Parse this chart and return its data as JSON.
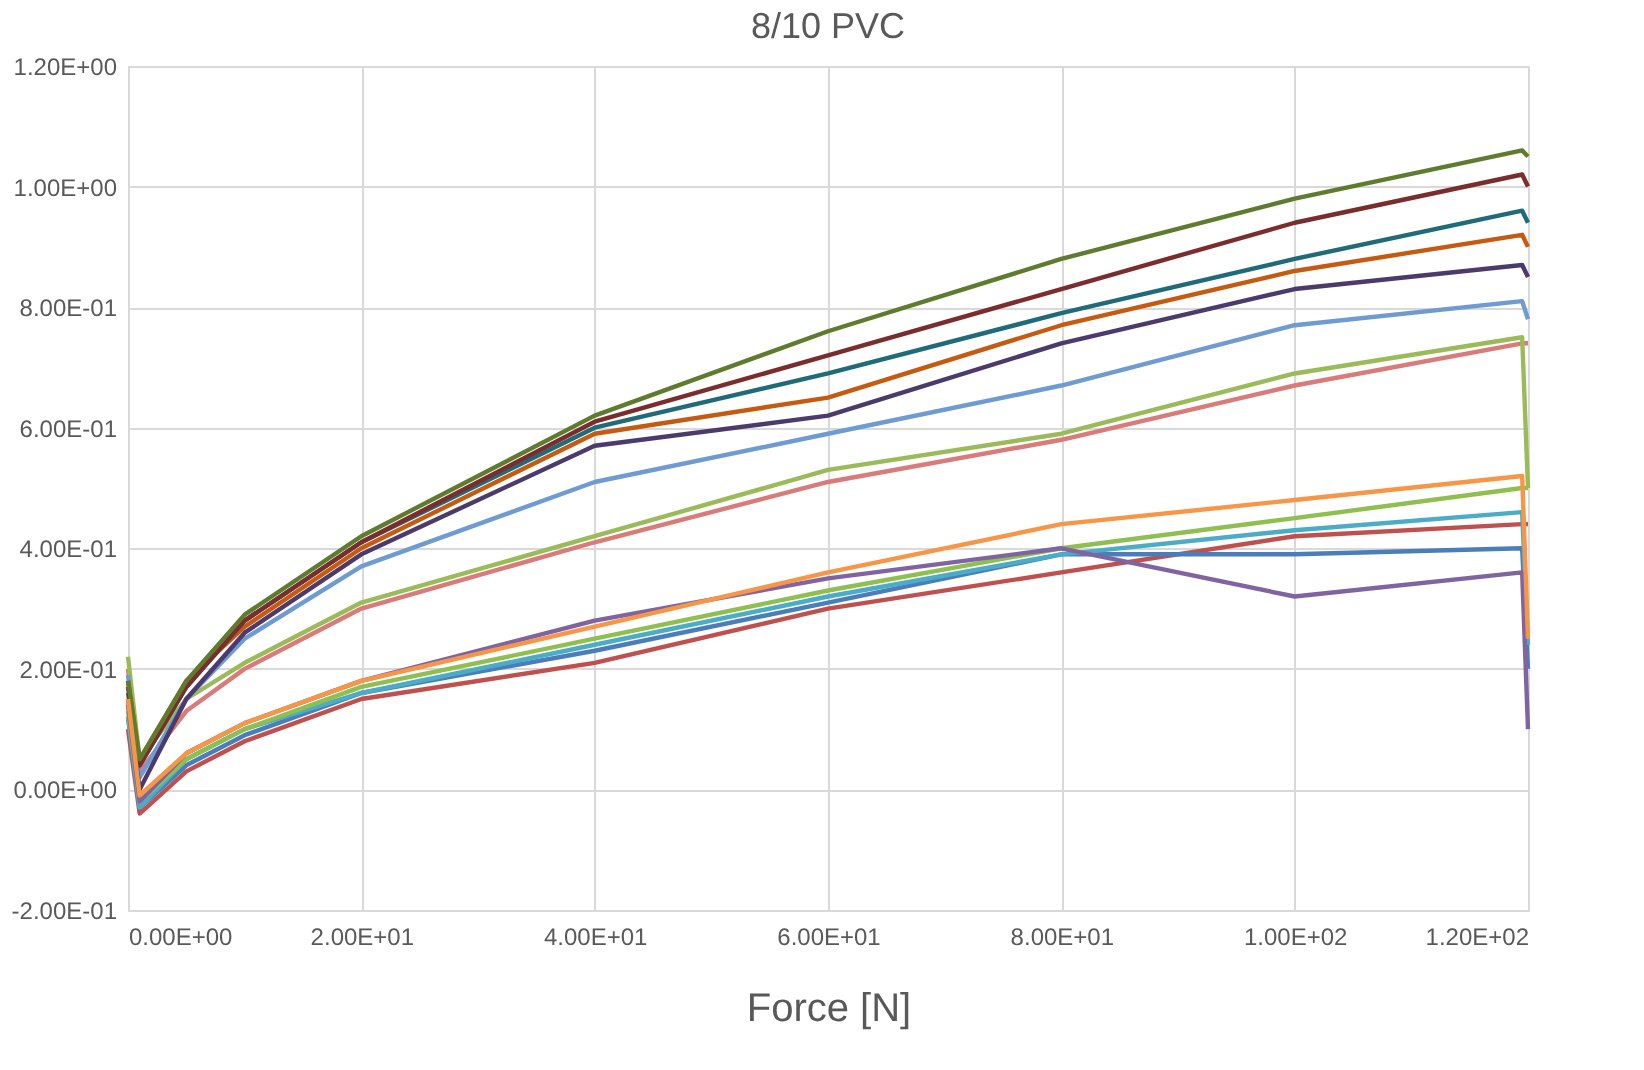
{
  "chart_data": {
    "type": "line",
    "title": "8/10 PVC",
    "xlabel": "Force [N]",
    "x": [
      0,
      1,
      5,
      10,
      20,
      40,
      60,
      80,
      100,
      119.5,
      120
    ],
    "xlim": [
      0,
      120
    ],
    "ylim": [
      -0.2,
      1.2
    ],
    "xticks": [
      {
        "value": 0,
        "label": "0.00E+00"
      },
      {
        "value": 20,
        "label": "2.00E+01"
      },
      {
        "value": 40,
        "label": "4.00E+01"
      },
      {
        "value": 60,
        "label": "6.00E+01"
      },
      {
        "value": 80,
        "label": "8.00E+01"
      },
      {
        "value": 100,
        "label": "1.00E+02"
      },
      {
        "value": 120,
        "label": "1.20E+02"
      }
    ],
    "yticks": [
      {
        "value": -0.2,
        "label": "-2.00E-01"
      },
      {
        "value": 0,
        "label": "0.00E+00"
      },
      {
        "value": 0.2,
        "label": "2.00E-01"
      },
      {
        "value": 0.4,
        "label": "4.00E-01"
      },
      {
        "value": 0.6,
        "label": "6.00E-01"
      },
      {
        "value": 0.8,
        "label": "8.00E-01"
      },
      {
        "value": 1.0,
        "label": "1.00E+00"
      },
      {
        "value": 1.2,
        "label": "1.20E+00"
      }
    ],
    "grid": true,
    "legend": false,
    "line_style": "solid",
    "marker": "none",
    "series": [
      {
        "color": "#d97b78",
        "values": [
          0.2,
          0.03,
          0.13,
          0.2,
          0.3,
          0.41,
          0.51,
          0.58,
          0.67,
          0.74,
          0.74
        ]
      },
      {
        "color": "#9bbb59",
        "values": [
          0.22,
          0.05,
          0.15,
          0.21,
          0.31,
          0.42,
          0.53,
          0.59,
          0.69,
          0.75,
          0.5
        ]
      },
      {
        "color": "#6e9bd1",
        "values": [
          0.19,
          0.02,
          0.15,
          0.25,
          0.37,
          0.51,
          0.59,
          0.67,
          0.77,
          0.81,
          0.78
        ]
      },
      {
        "color": "#4b3a6b",
        "values": [
          0.15,
          0.0,
          0.15,
          0.26,
          0.39,
          0.57,
          0.62,
          0.74,
          0.83,
          0.87,
          0.85
        ]
      },
      {
        "color": "#c55a11",
        "values": [
          0.18,
          0.05,
          0.18,
          0.27,
          0.4,
          0.59,
          0.65,
          0.77,
          0.86,
          0.92,
          0.9
        ]
      },
      {
        "color": "#1f6b7a",
        "values": [
          0.16,
          0.04,
          0.17,
          0.28,
          0.41,
          0.6,
          0.69,
          0.79,
          0.88,
          0.96,
          0.94
        ]
      },
      {
        "color": "#7b2c2c",
        "values": [
          0.17,
          0.04,
          0.17,
          0.28,
          0.41,
          0.61,
          0.72,
          0.83,
          0.94,
          1.02,
          1.0
        ]
      },
      {
        "color": "#5f7c2e",
        "values": [
          0.18,
          0.05,
          0.18,
          0.29,
          0.42,
          0.62,
          0.76,
          0.88,
          0.98,
          1.06,
          1.05
        ]
      },
      {
        "color": "#c0504d",
        "values": [
          0.1,
          -0.04,
          0.03,
          0.08,
          0.15,
          0.21,
          0.3,
          0.36,
          0.42,
          0.44,
          0.44
        ]
      },
      {
        "color": "#4a7ebb",
        "values": [
          0.12,
          -0.03,
          0.04,
          0.09,
          0.16,
          0.23,
          0.31,
          0.39,
          0.39,
          0.4,
          0.2
        ]
      },
      {
        "color": "#4bacc6",
        "values": [
          0.12,
          -0.03,
          0.05,
          0.1,
          0.16,
          0.24,
          0.32,
          0.39,
          0.43,
          0.46,
          0.24
        ]
      },
      {
        "color": "#8fbf4f",
        "values": [
          0.13,
          -0.02,
          0.05,
          0.1,
          0.17,
          0.25,
          0.33,
          0.4,
          0.45,
          0.5,
          0.5
        ]
      },
      {
        "color": "#8064a2",
        "values": [
          0.14,
          -0.02,
          0.06,
          0.11,
          0.18,
          0.28,
          0.35,
          0.4,
          0.32,
          0.36,
          0.1
        ]
      },
      {
        "color": "#f79646",
        "values": [
          0.15,
          -0.01,
          0.06,
          0.11,
          0.18,
          0.27,
          0.36,
          0.44,
          0.48,
          0.52,
          0.25
        ]
      }
    ]
  }
}
